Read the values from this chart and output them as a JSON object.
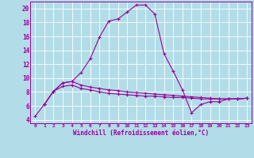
{
  "xlabel": "Windchill (Refroidissement éolien,°C)",
  "background_color": "#b2dde8",
  "grid_color": "#c8e8f0",
  "line_color": "#990099",
  "spine_color": "#9900aa",
  "xlim": [
    -0.5,
    23.5
  ],
  "ylim": [
    3.5,
    21.0
  ],
  "xticks": [
    0,
    1,
    2,
    3,
    4,
    5,
    6,
    7,
    8,
    9,
    10,
    11,
    12,
    13,
    14,
    15,
    16,
    17,
    18,
    19,
    20,
    21,
    22,
    23
  ],
  "yticks": [
    4,
    6,
    8,
    10,
    12,
    14,
    16,
    18,
    20
  ],
  "curve1_x": [
    0,
    1,
    2,
    3,
    4,
    5,
    6,
    7,
    8,
    9,
    10,
    11,
    12,
    13,
    14,
    15,
    16,
    17,
    18,
    19,
    20,
    21,
    22,
    23
  ],
  "curve1_y": [
    4.5,
    6.2,
    8.1,
    9.3,
    9.5,
    10.8,
    12.8,
    15.9,
    18.2,
    18.5,
    19.5,
    20.5,
    20.5,
    19.2,
    13.5,
    11.0,
    8.3,
    5.0,
    6.2,
    6.6,
    6.6,
    7.0,
    7.0,
    7.1
  ],
  "curve2_x": [
    1,
    2,
    3,
    4,
    5,
    6,
    7,
    8,
    9,
    10,
    11,
    12,
    13,
    14,
    15,
    16,
    17,
    18,
    19,
    20,
    21,
    22,
    23
  ],
  "curve2_y": [
    6.2,
    8.1,
    9.3,
    9.5,
    9.0,
    8.7,
    8.5,
    8.3,
    8.2,
    8.0,
    7.9,
    7.8,
    7.7,
    7.6,
    7.5,
    7.4,
    7.3,
    7.2,
    7.1,
    7.0,
    7.0,
    7.0,
    7.1
  ],
  "curve3_x": [
    1,
    2,
    3,
    4,
    5,
    6,
    7,
    8,
    9,
    10,
    11,
    12,
    13,
    14,
    15,
    16,
    17,
    18,
    19,
    20,
    21,
    22,
    23
  ],
  "curve3_y": [
    6.2,
    8.1,
    8.8,
    9.0,
    8.5,
    8.3,
    8.0,
    7.8,
    7.7,
    7.6,
    7.5,
    7.4,
    7.4,
    7.3,
    7.2,
    7.2,
    7.1,
    7.0,
    7.0,
    7.0,
    7.0,
    7.0,
    7.1
  ]
}
